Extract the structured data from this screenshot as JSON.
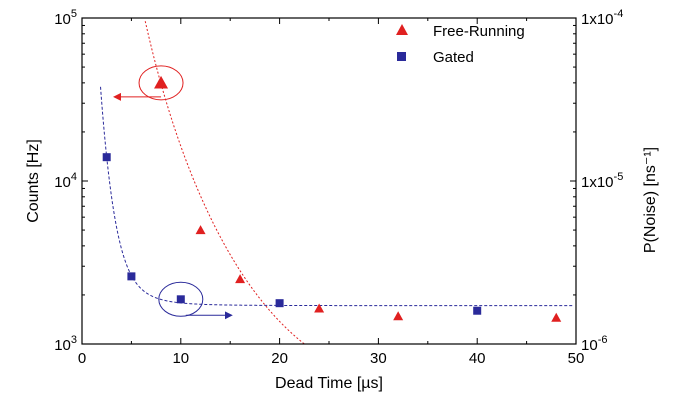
{
  "chart_data": {
    "type": "scatter",
    "xlabel": "Dead Time [µs]",
    "ylabel_left": "Counts [Hz]",
    "ylabel_right": "P(Noise) [ns⁻¹]",
    "xlim": [
      0,
      50
    ],
    "ylim_left": [
      1000,
      100000
    ],
    "ylim_right": [
      1e-06,
      0.0001
    ],
    "y_scale": "log",
    "grid": false,
    "legend_position": "top-right",
    "x_ticks": [
      0,
      10,
      20,
      30,
      40,
      50
    ],
    "x_tick_labels": [
      "0",
      "10",
      "20",
      "30",
      "40",
      "50"
    ],
    "y_left_ticks": [
      {
        "value": 100000,
        "base": "10",
        "exp": "5"
      },
      {
        "value": 10000,
        "base": "10",
        "exp": "4"
      },
      {
        "value": 1000,
        "base": "10",
        "exp": "3"
      }
    ],
    "y_right_ticks": [
      {
        "value": 0.0001,
        "base": "1x10",
        "exp": "-4"
      },
      {
        "value": 1e-05,
        "base": "1x10",
        "exp": "-5"
      },
      {
        "value": 1e-06,
        "base": "10",
        "exp": "-6"
      }
    ],
    "series": [
      {
        "name": "Free-Running",
        "color": "#e02020",
        "marker": "triangle",
        "x": [
          8,
          12,
          16,
          24,
          32,
          48
        ],
        "y": [
          40000,
          5000,
          2500,
          1650,
          1480,
          1450
        ],
        "fit_curve": true
      },
      {
        "name": "Gated",
        "color": "#2a2a9a",
        "marker": "square",
        "x": [
          2.5,
          5,
          10,
          20,
          40
        ],
        "y": [
          14000,
          2600,
          1880,
          1780,
          1600
        ],
        "fit_curve": true
      }
    ],
    "annotations": [
      {
        "type": "circle",
        "series": "Free-Running",
        "x": 8,
        "y": 40000,
        "arrow_direction": "left"
      },
      {
        "type": "circle",
        "series": "Gated",
        "x": 10,
        "y": 1880,
        "arrow_direction": "right"
      }
    ]
  }
}
